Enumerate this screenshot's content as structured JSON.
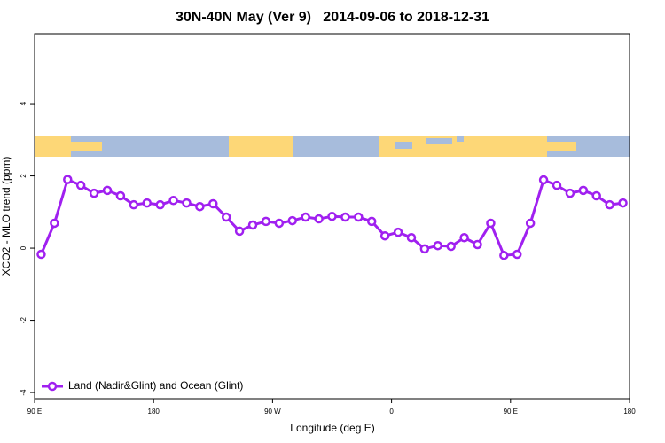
{
  "chart_data": {
    "type": "line",
    "title": "30N-40N May (Ver 9)   2014-09-06 to 2018-12-31",
    "x_label": "Longitude (deg E)",
    "y_label": "XCO2 - MLO trend (ppm)",
    "x": [
      95,
      105,
      115,
      125,
      135,
      145,
      155,
      165,
      175,
      185,
      195,
      205,
      215,
      225,
      235,
      245,
      255,
      265,
      275,
      285,
      295,
      305,
      315,
      325,
      335,
      345,
      355,
      365,
      375,
      385,
      395,
      405,
      415,
      425,
      435,
      445,
      455,
      465,
      475,
      485,
      495,
      505,
      515,
      525,
      535
    ],
    "series": [
      {
        "name": "Land (Nadir&Glint) and Ocean (Glint)",
        "color": "#a020f0",
        "values": [
          -0.17,
          0.69,
          1.9,
          1.74,
          1.52,
          1.6,
          1.45,
          1.2,
          1.25,
          1.2,
          1.32,
          1.25,
          1.15,
          1.23,
          0.86,
          0.47,
          0.64,
          0.74,
          0.69,
          0.76,
          0.86,
          0.81,
          0.88,
          0.86,
          0.86,
          0.74,
          0.34,
          0.44,
          0.29,
          -0.02,
          0.07,
          0.05,
          0.29,
          0.1,
          0.69,
          -0.2,
          -0.17,
          0.69,
          1.89,
          1.74,
          1.52,
          1.6,
          1.45,
          1.2,
          1.25
        ]
      }
    ],
    "xlim": [
      90,
      540
    ],
    "xticks": [
      {
        "value": 90,
        "label": "90 E"
      },
      180,
      {
        "value": 270,
        "label": "90 W"
      },
      {
        "value": 360,
        "label": "0"
      },
      {
        "value": 450,
        "label": "90 E"
      },
      {
        "value": 540,
        "label": "180"
      }
    ],
    "ylim": [
      -4.17,
      5.94
    ],
    "yticks": [
      -4,
      -2,
      0,
      2,
      4
    ],
    "legend": "lower left",
    "grid": false
  }
}
